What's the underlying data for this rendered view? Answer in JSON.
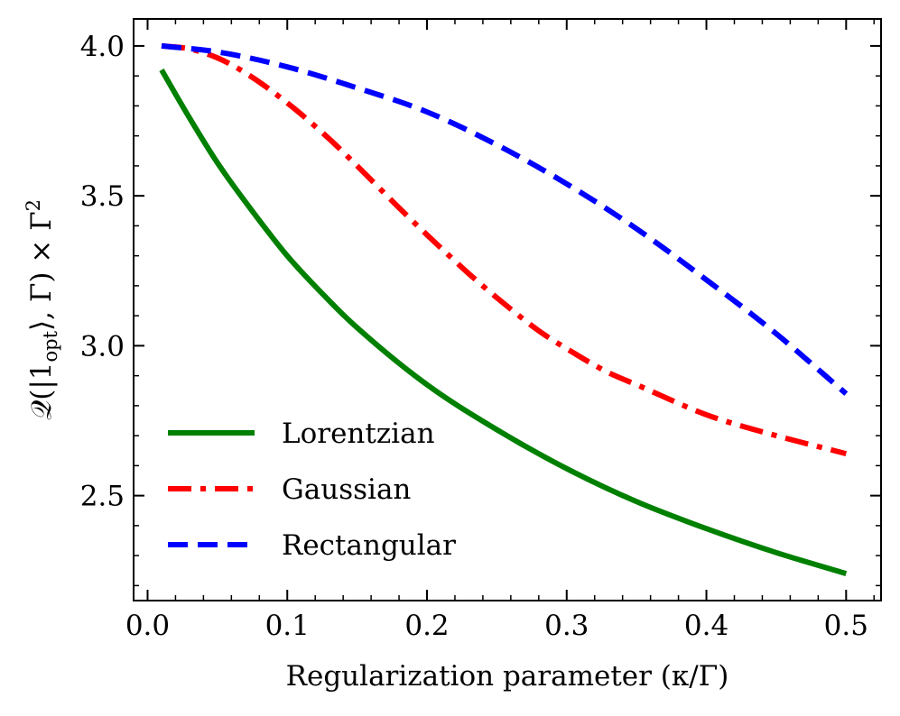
{
  "chart_data": {
    "type": "line",
    "xlabel": "Regularization parameter (κ/Γ)",
    "ylabel": "𝒬(|1opt⟩, Γ) × Γ²",
    "ylabel_parts": {
      "pre": "𝒬(|1",
      "sub": "opt",
      "mid": "⟩, Γ) × Γ",
      "sup": "2"
    },
    "xlim": [
      -0.01,
      0.525
    ],
    "ylim": [
      2.15,
      4.09
    ],
    "xticks": [
      0.0,
      0.1,
      0.2,
      0.3,
      0.4,
      0.5
    ],
    "xtick_labels": [
      "0.0",
      "0.1",
      "0.2",
      "0.3",
      "0.4",
      "0.5"
    ],
    "yticks": [
      2.5,
      3.0,
      3.5,
      4.0
    ],
    "ytick_labels": [
      "2.5",
      "3.0",
      "3.5",
      "4.0"
    ],
    "x_minor_step": 0.02,
    "y_minor_step": 0.1,
    "grid": false,
    "legend_position": "lower-left",
    "series": [
      {
        "name": "Lorentzian",
        "color": "#008000",
        "dash": "solid",
        "x": [
          0.01,
          0.03,
          0.05,
          0.07,
          0.1,
          0.13,
          0.15,
          0.2,
          0.25,
          0.3,
          0.35,
          0.4,
          0.45,
          0.5
        ],
        "y": [
          3.92,
          3.76,
          3.61,
          3.48,
          3.3,
          3.15,
          3.06,
          2.87,
          2.72,
          2.59,
          2.48,
          2.39,
          2.31,
          2.24
        ]
      },
      {
        "name": "Gaussian",
        "color": "#ff0000",
        "dash": "dashdot",
        "x": [
          0.01,
          0.03,
          0.05,
          0.07,
          0.1,
          0.13,
          0.15,
          0.18,
          0.2,
          0.23,
          0.25,
          0.28,
          0.3,
          0.33,
          0.35,
          0.4,
          0.45,
          0.5
        ],
        "y": [
          4.0,
          3.99,
          3.96,
          3.91,
          3.81,
          3.69,
          3.6,
          3.46,
          3.37,
          3.24,
          3.16,
          3.05,
          2.99,
          2.91,
          2.87,
          2.77,
          2.7,
          2.64
        ]
      },
      {
        "name": "Rectangular",
        "color": "#0000ff",
        "dash": "dashed",
        "x": [
          0.01,
          0.05,
          0.1,
          0.15,
          0.2,
          0.25,
          0.3,
          0.35,
          0.4,
          0.45,
          0.5
        ],
        "y": [
          4.0,
          3.98,
          3.93,
          3.86,
          3.78,
          3.67,
          3.54,
          3.39,
          3.22,
          3.04,
          2.84
        ]
      }
    ]
  }
}
